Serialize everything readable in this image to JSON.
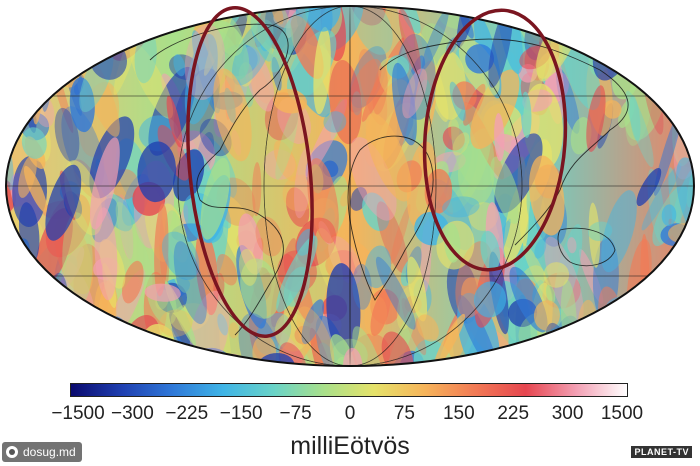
{
  "map": {
    "projection": "mollweide",
    "highlights": [
      {
        "name": "americas-ellipse",
        "color": "#7a1520"
      },
      {
        "name": "africa-asia-ellipse",
        "color": "#7a1520"
      }
    ]
  },
  "colorbar": {
    "ticks": [
      "−1500",
      "−300",
      "−225",
      "−150",
      "−75",
      "0",
      "75",
      "150",
      "225",
      "300",
      "1500"
    ],
    "colors": [
      "#0a0a6e",
      "#1f3fb0",
      "#2f78d8",
      "#3fb4e6",
      "#69d3c8",
      "#a9e08a",
      "#e5e26a",
      "#f6b45a",
      "#f27a55",
      "#e64650",
      "#f3a0b4",
      "#ffffff"
    ],
    "unit": "milliEötvös"
  },
  "watermark": {
    "text": "dosug.md"
  },
  "credit": {
    "text": "PLANET-TV"
  }
}
